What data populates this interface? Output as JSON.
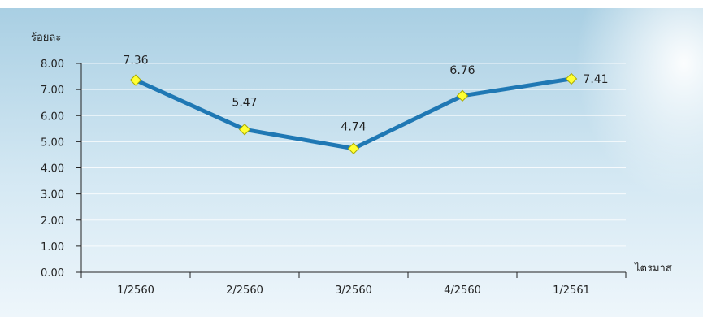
{
  "chart_data": {
    "type": "line",
    "ylabel": "ร้อยละ",
    "xlabel": "ไตรมาส",
    "categories": [
      "1/2560",
      "2/2560",
      "3/2560",
      "4/2560",
      "1/2561"
    ],
    "series": [
      {
        "values": [
          7.36,
          5.47,
          4.74,
          6.76,
          7.41
        ]
      }
    ],
    "ylim": [
      0,
      8
    ],
    "yticks": [
      "0.00",
      "1.00",
      "2.00",
      "3.00",
      "4.00",
      "5.00",
      "6.00",
      "7.00",
      "8.00"
    ],
    "data_labels": [
      "7.36",
      "5.47",
      "4.74",
      "6.76",
      "7.41"
    ],
    "colors": {
      "line": "#1f78b4",
      "marker_fill": "#ffff33",
      "marker_stroke": "#a8a800",
      "axis": "#222222",
      "grid": "#ffffff",
      "bg_top": "#a9cfe3",
      "bg_bottom": "#eef6fb"
    },
    "grid": true
  }
}
